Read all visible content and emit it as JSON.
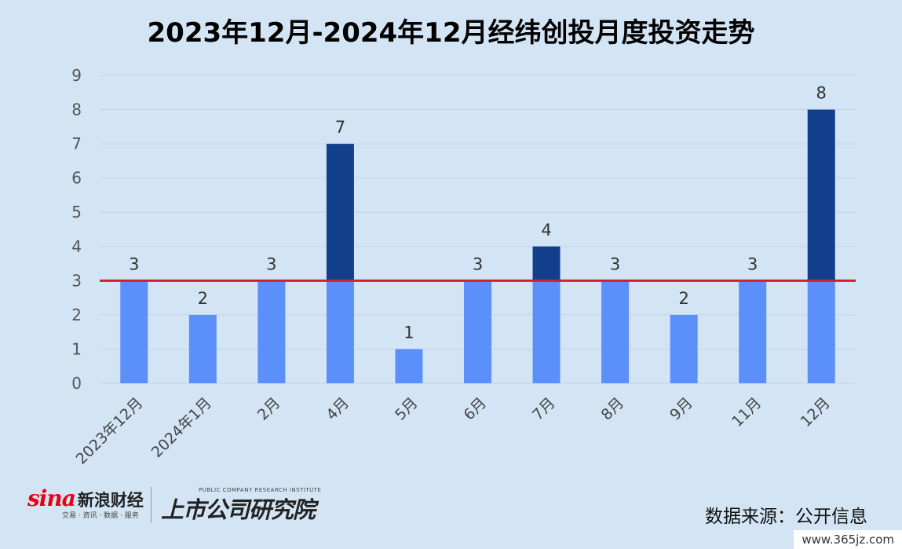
{
  "title": "2023年12月-2024年12月经纬创投月度投资走势",
  "chart_data": {
    "type": "bar",
    "categories": [
      "2023年12月",
      "2024年1月",
      "2月",
      "4月",
      "5月",
      "6月",
      "7月",
      "8月",
      "9月",
      "11月",
      "12月"
    ],
    "values": [
      3,
      2,
      3,
      7,
      1,
      3,
      4,
      3,
      2,
      3,
      8
    ],
    "ylim": [
      0,
      9
    ],
    "yticks": [
      0,
      1,
      2,
      3,
      4,
      5,
      6,
      7,
      8,
      9
    ],
    "reference_line": 3,
    "grid": true,
    "colors": {
      "below_reference": "#5b8ff9",
      "above_reference": "#123f8c",
      "reference_line": "#d0202e",
      "gridline": "#c4d4e3"
    }
  },
  "footer": {
    "sina_logo_word": "sina",
    "sina_logo_cn": "新浪财经",
    "sina_logo_sub": "交易 · 资讯 · 数据 · 服务",
    "research_logo_small": "PUBLIC COMPANY RESEARCH INSTITUTE",
    "research_logo_big": "上市公司研究院",
    "source": "数据来源：公开信息"
  },
  "watermark": "www.365jz.com"
}
